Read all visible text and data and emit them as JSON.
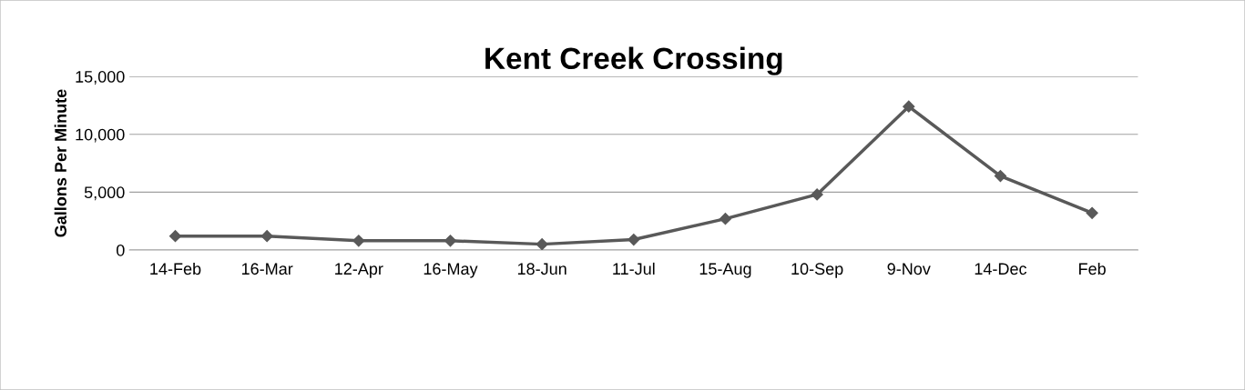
{
  "chart_data": {
    "type": "line",
    "title": "Kent Creek Crossing",
    "ylabel": "Gallons Per Minute",
    "categories": [
      "14-Feb",
      "16-Mar",
      "12-Apr",
      "16-May",
      "18-Jun",
      "11-Jul",
      "15-Aug",
      "10-Sep",
      "9-Nov",
      "14-Dec",
      "Feb"
    ],
    "series": [
      {
        "color": "#595959",
        "values": [
          1200,
          1200,
          800,
          800,
          500,
          900,
          2700,
          4800,
          12400,
          6400,
          3200
        ]
      }
    ],
    "ylim": [
      0,
      15000
    ],
    "yticks": [
      0,
      {
        "value": 5000,
        "label": "5,000"
      },
      {
        "value": 10000,
        "label": "10,000"
      },
      {
        "value": 15000,
        "label": "15,000"
      }
    ],
    "grid": "y",
    "marker": "diamond",
    "line_style": "solid"
  }
}
